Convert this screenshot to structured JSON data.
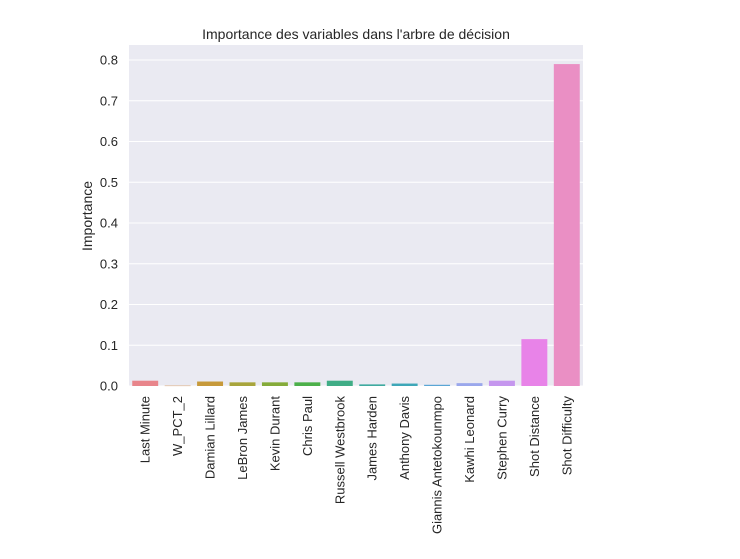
{
  "chart_data": {
    "type": "bar",
    "title": "Importance des variables dans l'arbre de décision",
    "xlabel": "",
    "ylabel": "Importance",
    "ylim": [
      0,
      0.82
    ],
    "yticks": [
      0.0,
      0.1,
      0.2,
      0.3,
      0.4,
      0.5,
      0.6,
      0.7,
      0.8
    ],
    "ytick_labels": [
      "0.0",
      "0.1",
      "0.2",
      "0.3",
      "0.4",
      "0.5",
      "0.6",
      "0.7",
      "0.8"
    ],
    "grid": true,
    "categories": [
      "Last Minute",
      "W_PCT_2",
      "Damian Lillard",
      "LeBron James",
      "Kevin Durant",
      "Chris Paul",
      "Russell Westbrook",
      "James Harden",
      "Anthony Davis",
      "Giannis Antetokounmpo",
      "Kawhi Leonard",
      "Stephen Curry",
      "Shot Distance",
      "Shot Difficulty"
    ],
    "values": [
      0.013,
      0.001,
      0.011,
      0.009,
      0.009,
      0.009,
      0.013,
      0.004,
      0.006,
      0.003,
      0.007,
      0.013,
      0.115,
      0.79
    ],
    "colors": [
      "#e8858b",
      "#d9a06b",
      "#c79a3b",
      "#a8a53c",
      "#85ab3a",
      "#4cb04a",
      "#40ad86",
      "#40aaa0",
      "#3ea7b8",
      "#5aa6d5",
      "#9aa7ec",
      "#c596ee",
      "#e883e8",
      "#ea8fc4"
    ]
  }
}
